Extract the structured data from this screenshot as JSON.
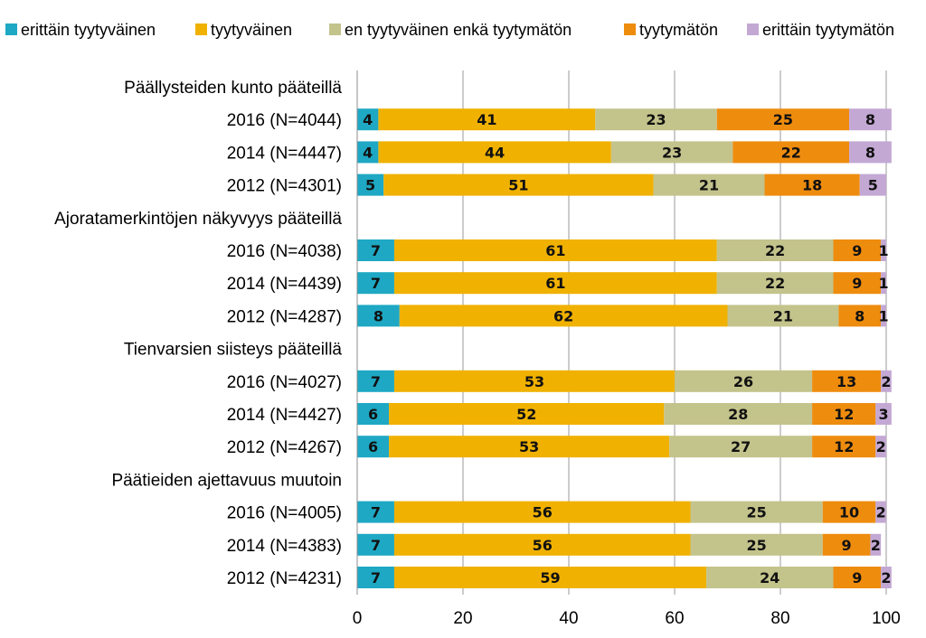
{
  "chart_data": {
    "type": "bar",
    "orientation": "horizontal",
    "stacked": true,
    "title": "",
    "xlabel": "",
    "ylabel": "",
    "xlim": [
      0,
      100
    ],
    "xticks": [
      "0",
      "20",
      "40",
      "60",
      "80",
      "100"
    ],
    "grid": "vertical",
    "legend_position": "top",
    "series": [
      {
        "name": "erittäin tyytyväinen",
        "color": "#1ea8c4"
      },
      {
        "name": "tyytyväinen",
        "color": "#f0b100"
      },
      {
        "name": "en tyytyväinen enkä tyytymätön",
        "color": "#c3c38c"
      },
      {
        "name": "tyytymätön",
        "color": "#ee8c0e"
      },
      {
        "name": "erittäin tyytymätön",
        "color": "#c3a8d4"
      }
    ],
    "groups": [
      {
        "title": "Päällysteiden kunto pääteillä",
        "rows": [
          {
            "label": "2016 (N=4044)",
            "values": [
              4,
              41,
              23,
              25,
              8
            ]
          },
          {
            "label": "2014 (N=4447)",
            "values": [
              4,
              44,
              23,
              22,
              8
            ]
          },
          {
            "label": "2012 (N=4301)",
            "values": [
              5,
              51,
              21,
              18,
              5
            ]
          }
        ]
      },
      {
        "title": "Ajoratamerkintöjen näkyvyys pääteillä",
        "rows": [
          {
            "label": "2016 (N=4038)",
            "values": [
              7,
              61,
              22,
              9,
              1
            ]
          },
          {
            "label": "2014 (N=4439)",
            "values": [
              7,
              61,
              22,
              9,
              1
            ]
          },
          {
            "label": "2012 (N=4287)",
            "values": [
              8,
              62,
              21,
              8,
              1
            ]
          }
        ]
      },
      {
        "title": "Tienvarsien siisteys pääteillä",
        "rows": [
          {
            "label": "2016 (N=4027)",
            "values": [
              7,
              53,
              26,
              13,
              2
            ]
          },
          {
            "label": "2014 (N=4427)",
            "values": [
              6,
              52,
              28,
              12,
              3
            ]
          },
          {
            "label": "2012 (N=4267)",
            "values": [
              6,
              53,
              27,
              12,
              2
            ]
          }
        ]
      },
      {
        "title": "Päätieiden ajettavuus muutoin",
        "rows": [
          {
            "label": "2016 (N=4005)",
            "values": [
              7,
              56,
              25,
              10,
              2
            ]
          },
          {
            "label": "2014 (N=4383)",
            "values": [
              7,
              56,
              25,
              9,
              2
            ]
          },
          {
            "label": "2012 (N=4231)",
            "values": [
              7,
              59,
              24,
              9,
              2
            ]
          }
        ]
      }
    ]
  }
}
